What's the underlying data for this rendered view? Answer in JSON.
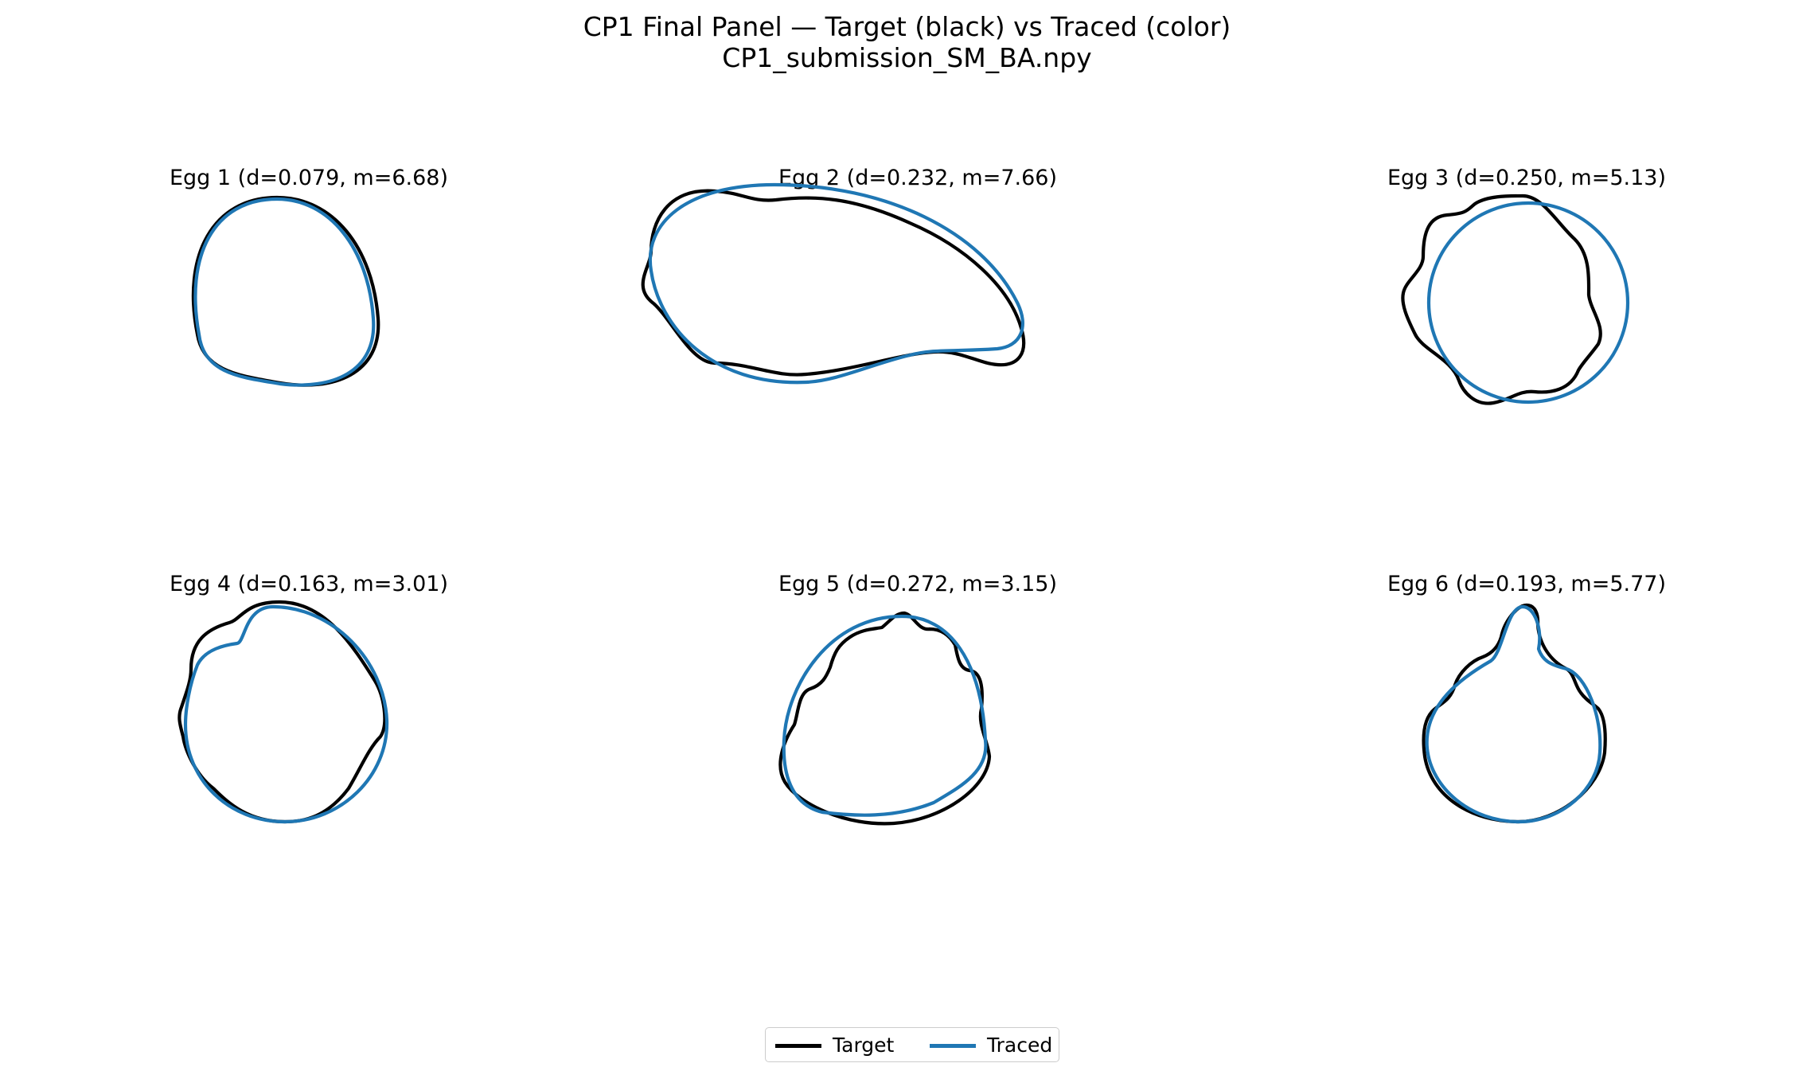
{
  "figure": {
    "title_line1": "CP1 Final Panel — Target (black) vs Traced (color)",
    "title_line2": "CP1_submission_SM_BA.npy"
  },
  "colors": {
    "target": "#000000",
    "traced": "#1f77b4"
  },
  "legend": {
    "target_label": "Target",
    "traced_label": "Traced",
    "placement": "bottom-center"
  },
  "chart_data": [
    {
      "type": "line",
      "title": "Egg 1  (d=0.079, m=6.68)",
      "axes_visible": false,
      "grid": false,
      "series": [
        {
          "name": "Target"
        },
        {
          "name": "Traced"
        }
      ]
    },
    {
      "type": "line",
      "title": "Egg 2  (d=0.232, m=7.66)",
      "axes_visible": false,
      "grid": false,
      "series": [
        {
          "name": "Target"
        },
        {
          "name": "Traced"
        }
      ]
    },
    {
      "type": "line",
      "title": "Egg 3  (d=0.250, m=5.13)",
      "axes_visible": false,
      "grid": false,
      "series": [
        {
          "name": "Target"
        },
        {
          "name": "Traced"
        }
      ]
    },
    {
      "type": "line",
      "title": "Egg 4  (d=0.163, m=3.01)",
      "axes_visible": false,
      "grid": false,
      "series": [
        {
          "name": "Target"
        },
        {
          "name": "Traced"
        }
      ]
    },
    {
      "type": "line",
      "title": "Egg 5  (d=0.272, m=3.15)",
      "axes_visible": false,
      "grid": false,
      "series": [
        {
          "name": "Target"
        },
        {
          "name": "Traced"
        }
      ]
    },
    {
      "type": "line",
      "title": "Egg 6  (d=0.193, m=5.77)",
      "axes_visible": false,
      "grid": false,
      "series": [
        {
          "name": "Target"
        },
        {
          "name": "Traced"
        }
      ]
    }
  ]
}
